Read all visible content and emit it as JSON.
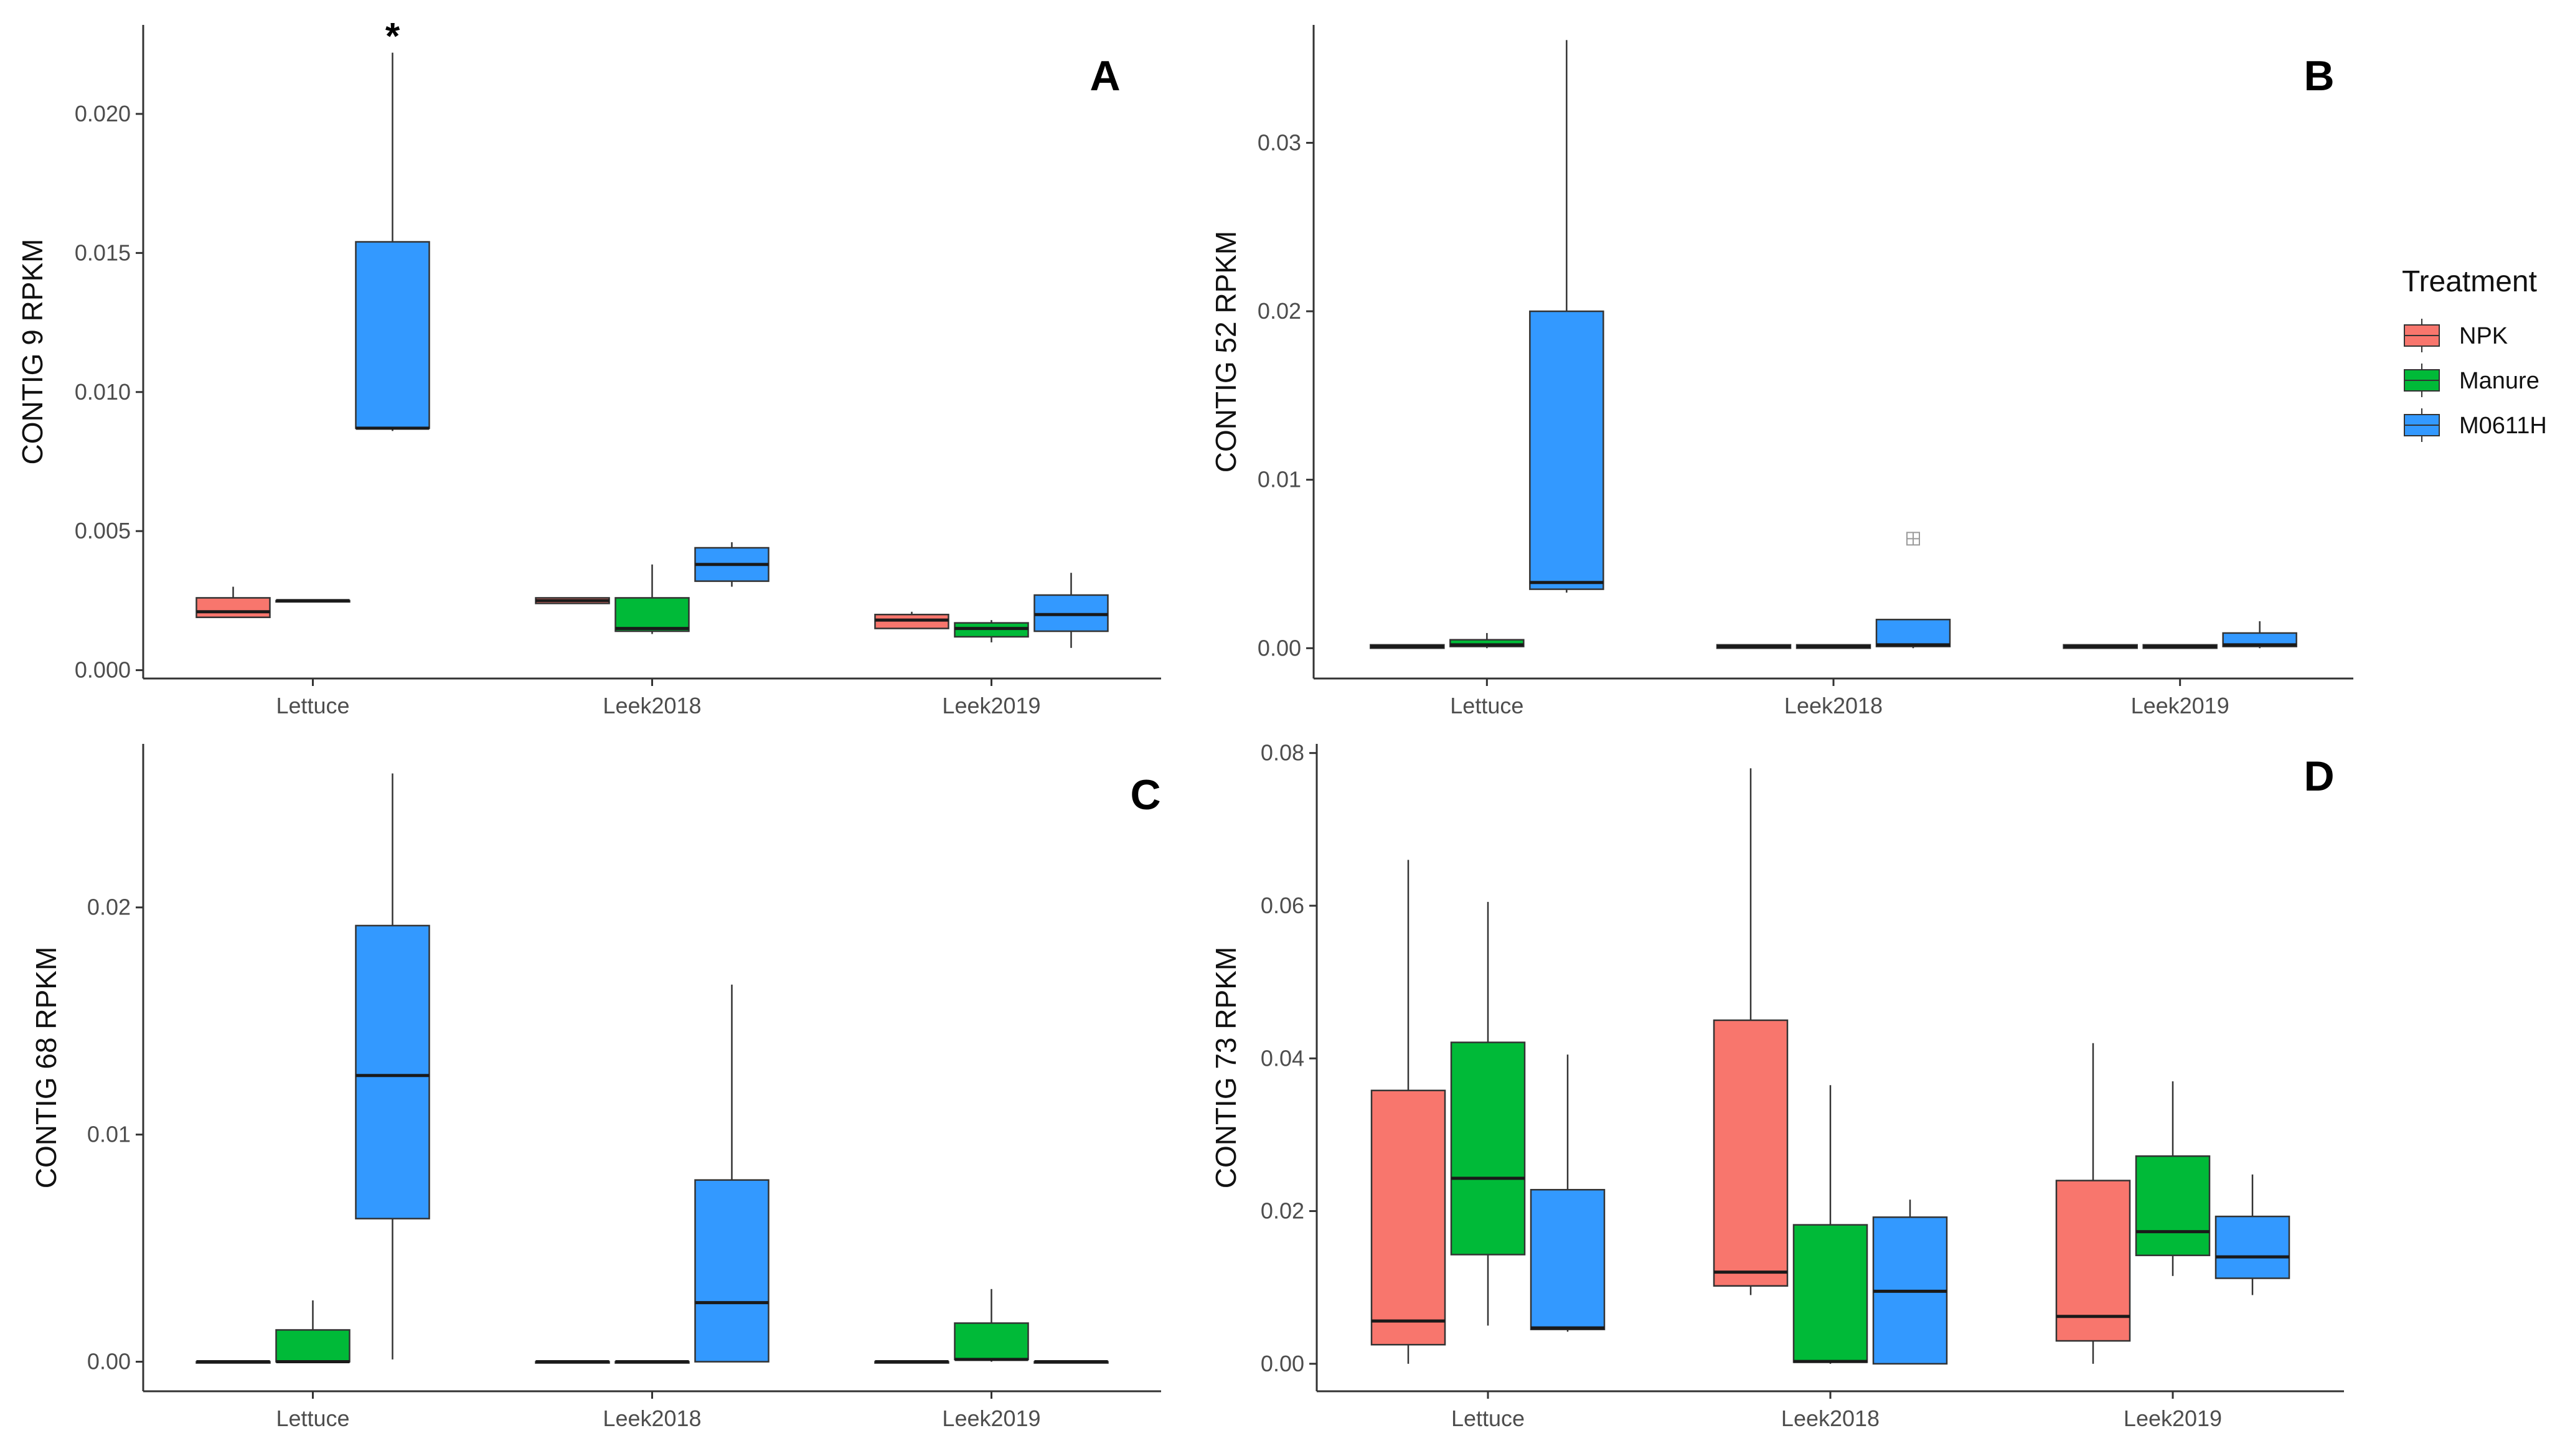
{
  "colors": {
    "NPK": "#F8766D",
    "Manure": "#00BA38",
    "M0611H": "#3399FF",
    "axis": "#333333",
    "tick_text": "#4d4d4d"
  },
  "legend": {
    "title": "Treatment",
    "entries": [
      "NPK",
      "Manure",
      "M0611H"
    ]
  },
  "chart_data": [
    {
      "panel": "A",
      "type": "box",
      "ylabel": "CONTIG 9 RPKM",
      "categories": [
        "Lettuce",
        "Leek2018",
        "Leek2019"
      ],
      "ylim": [
        -0.0003,
        0.0232
      ],
      "yticks": [
        0.0,
        0.005,
        0.01,
        0.015,
        0.02
      ],
      "ytick_labels": [
        "0.000",
        "0.005",
        "0.010",
        "0.015",
        "0.020"
      ],
      "series": [
        {
          "name": "NPK",
          "boxes": [
            {
              "min": 0.0019,
              "q1": 0.0019,
              "median": 0.0021,
              "q3": 0.0026,
              "max": 0.003
            },
            {
              "min": 0.0024,
              "q1": 0.0024,
              "median": 0.0025,
              "q3": 0.0026,
              "max": 0.0026
            },
            {
              "min": 0.0015,
              "q1": 0.0015,
              "median": 0.0018,
              "q3": 0.002,
              "max": 0.0021
            }
          ]
        },
        {
          "name": "Manure",
          "boxes": [
            {
              "min": 0.0025,
              "q1": 0.0025,
              "median": 0.0025,
              "q3": 0.0025,
              "max": 0.0025
            },
            {
              "min": 0.0013,
              "q1": 0.0014,
              "median": 0.0015,
              "q3": 0.0026,
              "max": 0.0038
            },
            {
              "min": 0.001,
              "q1": 0.0012,
              "median": 0.0015,
              "q3": 0.0017,
              "max": 0.0018
            }
          ]
        },
        {
          "name": "M0611H",
          "boxes": [
            {
              "min": 0.0086,
              "q1": 0.0087,
              "median": 0.0087,
              "q3": 0.0154,
              "max": 0.0222
            },
            {
              "min": 0.003,
              "q1": 0.0032,
              "median": 0.0038,
              "q3": 0.0044,
              "max": 0.0046
            },
            {
              "min": 0.0008,
              "q1": 0.0014,
              "median": 0.002,
              "q3": 0.0027,
              "max": 0.0035
            }
          ]
        }
      ],
      "annotations": [
        {
          "text": "*",
          "category": "Lettuce",
          "series": "M0611H"
        }
      ]
    },
    {
      "panel": "B",
      "type": "box",
      "ylabel": "CONTIG 52 RPKM",
      "categories": [
        "Lettuce",
        "Leek2018",
        "Leek2019"
      ],
      "ylim": [
        -0.0018,
        0.037
      ],
      "yticks": [
        0.0,
        0.01,
        0.02,
        0.03
      ],
      "ytick_labels": [
        "0.00",
        "0.01",
        "0.02",
        "0.03"
      ],
      "series": [
        {
          "name": "NPK",
          "boxes": [
            {
              "min": 0.0,
              "q1": 0.0,
              "median": 0.0001,
              "q3": 0.0002,
              "max": 0.0002
            },
            {
              "min": 0.0,
              "q1": 0.0,
              "median": 0.0001,
              "q3": 0.0002,
              "max": 0.0002
            },
            {
              "min": 0.0,
              "q1": 0.0,
              "median": 0.0001,
              "q3": 0.0002,
              "max": 0.0002
            }
          ]
        },
        {
          "name": "Manure",
          "boxes": [
            {
              "min": 0.0,
              "q1": 0.0001,
              "median": 0.0002,
              "q3": 0.0005,
              "max": 0.0009
            },
            {
              "min": 0.0,
              "q1": 0.0,
              "median": 0.0001,
              "q3": 0.0002,
              "max": 0.0002
            },
            {
              "min": 0.0,
              "q1": 0.0,
              "median": 0.0001,
              "q3": 0.0002,
              "max": 0.0002
            }
          ]
        },
        {
          "name": "M0611H",
          "boxes": [
            {
              "min": 0.0033,
              "q1": 0.0035,
              "median": 0.0039,
              "q3": 0.02,
              "max": 0.0361
            },
            {
              "min": 0.0,
              "q1": 0.0001,
              "median": 0.0002,
              "q3": 0.0017,
              "max": 0.0017
            },
            {
              "min": 0.0,
              "q1": 0.0001,
              "median": 0.0002,
              "q3": 0.0009,
              "max": 0.0016
            }
          ]
        }
      ],
      "outliers": [
        {
          "category": "Leek2018",
          "series": "M0611H",
          "value": 0.0065
        }
      ]
    },
    {
      "panel": "C",
      "type": "box",
      "ylabel": "CONTIG 68 RPKM",
      "categories": [
        "Lettuce",
        "Leek2018",
        "Leek2019"
      ],
      "ylim": [
        -0.0013,
        0.0272
      ],
      "yticks": [
        0.0,
        0.01,
        0.02
      ],
      "ytick_labels": [
        "0.00",
        "0.01",
        "0.02"
      ],
      "series": [
        {
          "name": "NPK",
          "boxes": [
            {
              "min": 0.0,
              "q1": 0.0,
              "median": 0.0,
              "q3": 0.0,
              "max": 0.0
            },
            {
              "min": 0.0,
              "q1": 0.0,
              "median": 0.0,
              "q3": 0.0,
              "max": 0.0
            },
            {
              "min": 0.0,
              "q1": 0.0,
              "median": 0.0,
              "q3": 0.0,
              "max": 0.0
            }
          ]
        },
        {
          "name": "Manure",
          "boxes": [
            {
              "min": 0.0,
              "q1": 0.0,
              "median": 0.0,
              "q3": 0.0014,
              "max": 0.0027
            },
            {
              "min": 0.0,
              "q1": 0.0,
              "median": 0.0,
              "q3": 0.0,
              "max": 0.0
            },
            {
              "min": 0.0,
              "q1": 0.0001,
              "median": 0.0001,
              "q3": 0.0017,
              "max": 0.0032
            }
          ]
        },
        {
          "name": "M0611H",
          "boxes": [
            {
              "min": 0.0001,
              "q1": 0.0063,
              "median": 0.0126,
              "q3": 0.0192,
              "max": 0.0259
            },
            {
              "min": 0.0,
              "q1": 0.0,
              "median": 0.0026,
              "q3": 0.008,
              "max": 0.0166
            },
            {
              "min": 0.0,
              "q1": 0.0,
              "median": 0.0,
              "q3": 0.0,
              "max": 0.0
            }
          ]
        }
      ]
    },
    {
      "panel": "D",
      "type": "box",
      "ylabel": "CONTIG 73 RPKM",
      "categories": [
        "Lettuce",
        "Leek2018",
        "Leek2019"
      ],
      "ylim": [
        -0.0036,
        0.0812
      ],
      "yticks": [
        0.0,
        0.02,
        0.04,
        0.06,
        0.08
      ],
      "ytick_labels": [
        "0.00",
        "0.02",
        "0.04",
        "0.06",
        "0.08"
      ],
      "series": [
        {
          "name": "NPK",
          "boxes": [
            {
              "min": 0.0,
              "q1": 0.0025,
              "median": 0.0056,
              "q3": 0.0358,
              "max": 0.066
            },
            {
              "min": 0.009,
              "q1": 0.0102,
              "median": 0.012,
              "q3": 0.045,
              "max": 0.078
            },
            {
              "min": 0.0,
              "q1": 0.003,
              "median": 0.0062,
              "q3": 0.024,
              "max": 0.042
            }
          ]
        },
        {
          "name": "Manure",
          "boxes": [
            {
              "min": 0.005,
              "q1": 0.0143,
              "median": 0.0243,
              "q3": 0.0421,
              "max": 0.0605
            },
            {
              "min": 0.0,
              "q1": 0.0002,
              "median": 0.0003,
              "q3": 0.0182,
              "max": 0.0365
            },
            {
              "min": 0.0115,
              "q1": 0.0142,
              "median": 0.0173,
              "q3": 0.0272,
              "max": 0.037
            }
          ]
        },
        {
          "name": "M0611H",
          "boxes": [
            {
              "min": 0.0042,
              "q1": 0.0045,
              "median": 0.0047,
              "q3": 0.0228,
              "max": 0.0405
            },
            {
              "min": 0.0,
              "q1": 0.0,
              "median": 0.0095,
              "q3": 0.0192,
              "max": 0.0215
            },
            {
              "min": 0.009,
              "q1": 0.0112,
              "median": 0.014,
              "q3": 0.0193,
              "max": 0.0248
            }
          ]
        }
      ]
    }
  ]
}
